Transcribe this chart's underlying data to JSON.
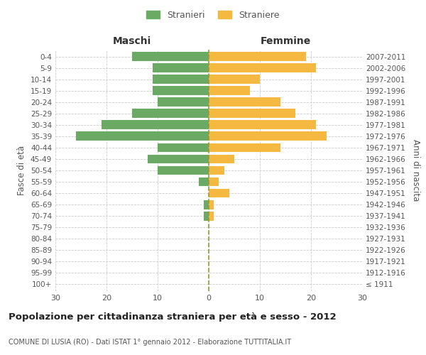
{
  "age_groups": [
    "100+",
    "95-99",
    "90-94",
    "85-89",
    "80-84",
    "75-79",
    "70-74",
    "65-69",
    "60-64",
    "55-59",
    "50-54",
    "45-49",
    "40-44",
    "35-39",
    "30-34",
    "25-29",
    "20-24",
    "15-19",
    "10-14",
    "5-9",
    "0-4"
  ],
  "birth_years": [
    "≤ 1911",
    "1912-1916",
    "1917-1921",
    "1922-1926",
    "1927-1931",
    "1932-1936",
    "1937-1941",
    "1942-1946",
    "1947-1951",
    "1952-1956",
    "1957-1961",
    "1962-1966",
    "1967-1971",
    "1972-1976",
    "1977-1981",
    "1982-1986",
    "1987-1991",
    "1992-1996",
    "1997-2001",
    "2002-2006",
    "2007-2011"
  ],
  "males": [
    0,
    0,
    0,
    0,
    0,
    0,
    1,
    1,
    0,
    2,
    10,
    12,
    10,
    26,
    21,
    15,
    10,
    11,
    11,
    11,
    15
  ],
  "females": [
    0,
    0,
    0,
    0,
    0,
    0,
    1,
    1,
    4,
    2,
    3,
    5,
    14,
    23,
    21,
    17,
    14,
    8,
    10,
    21,
    19
  ],
  "male_color": "#6aaa64",
  "female_color": "#f5b942",
  "grid_color": "#cccccc",
  "center_line_color": "#999933",
  "background_color": "#ffffff",
  "title": "Popolazione per cittadinanza straniera per età e sesso - 2012",
  "subtitle": "COMUNE DI LUSIA (RO) - Dati ISTAT 1° gennaio 2012 - Elaborazione TUTTITALIA.IT",
  "ylabel_left": "Fasce di età",
  "ylabel_right": "Anni di nascita",
  "xlabel_left": "Maschi",
  "xlabel_right": "Femmine",
  "legend_stranieri": "Stranieri",
  "legend_straniere": "Straniere",
  "xlim": 30,
  "bar_height": 0.8
}
